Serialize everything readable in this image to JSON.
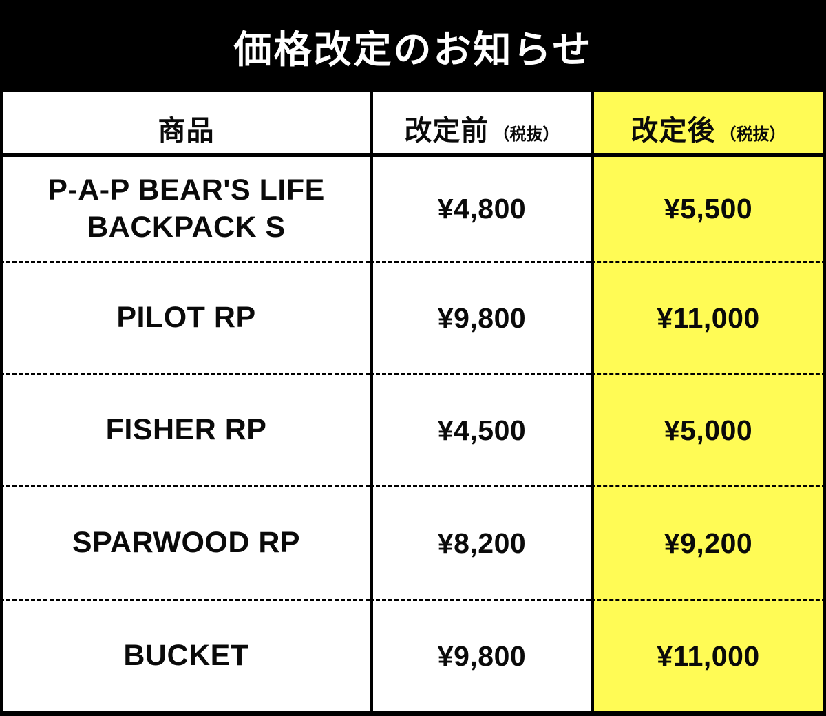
{
  "title": "価格改定のお知らせ",
  "colors": {
    "background": "#000000",
    "title_text": "#FFFFFF",
    "cell_background": "#FFFFFF",
    "highlight_column": "#FFFB55",
    "text": "#0A0A0A",
    "border": "#000000"
  },
  "table": {
    "headers": [
      {
        "label": "商品",
        "note": ""
      },
      {
        "label": "改定前",
        "note": "（税抜）"
      },
      {
        "label": "改定後",
        "note": "（税抜）"
      }
    ],
    "rows": [
      {
        "product": "P-A-P BEAR'S LIFE BACKPACK S",
        "before": "¥4,800",
        "after": "¥5,500"
      },
      {
        "product": "PILOT RP",
        "before": "¥9,800",
        "after": "¥11,000"
      },
      {
        "product": "FISHER RP",
        "before": "¥4,500",
        "after": "¥5,000"
      },
      {
        "product": "SPARWOOD RP",
        "before": "¥8,200",
        "after": "¥9,200"
      },
      {
        "product": "BUCKET",
        "before": "¥9,800",
        "after": "¥11,000"
      }
    ]
  },
  "chart_data": {
    "type": "table",
    "title": "価格改定のお知らせ",
    "columns": [
      "商品",
      "改定前（税抜）",
      "改定後（税抜）"
    ],
    "rows": [
      [
        "P-A-P BEAR'S LIFE BACKPACK S",
        "¥4,800",
        "¥5,500"
      ],
      [
        "PILOT RP",
        "¥9,800",
        "¥11,000"
      ],
      [
        "FISHER RP",
        "¥4,500",
        "¥5,000"
      ],
      [
        "SPARWOOD RP",
        "¥8,200",
        "¥9,200"
      ],
      [
        "BUCKET",
        "¥9,800",
        "¥11,000"
      ]
    ],
    "prices_numeric_jpy": {
      "before": [
        4800,
        9800,
        4500,
        8200,
        9800
      ],
      "after": [
        5500,
        11000,
        5000,
        9200,
        11000
      ]
    },
    "layout_hints": {
      "highlighted_column": "改定後（税抜）",
      "highlight_color": "#FFFB55",
      "row_separator_style": "dashed",
      "header_separator_style": "solid"
    }
  }
}
